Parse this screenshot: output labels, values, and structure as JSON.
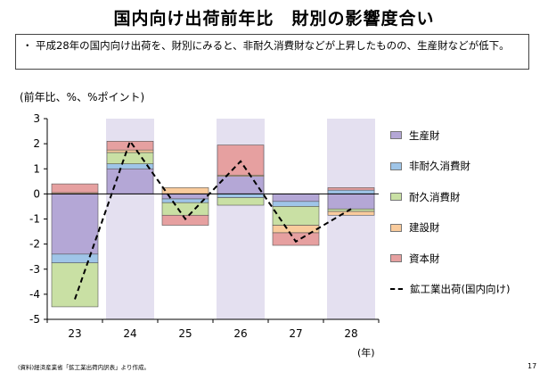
{
  "slide": {
    "title": "国内向け出荷前年比　財別の影響度合い",
    "bullet": "・",
    "summary": "平成28年の国内向け出荷を、財別にみると、非耐久消費財などが上昇したものの、生産財などが低下。",
    "unit_label": "(前年比、%、%ポイント)",
    "year_unit": "(年)",
    "source": "(資料)経済産業省「鉱工業出荷内訳表」より作成。",
    "page": "17"
  },
  "colors": {
    "production": "#b4a7d6",
    "nondurable": "#9fc5e8",
    "durable": "#c9e0a4",
    "construction": "#f9cb9c",
    "capital": "#e6a0a0",
    "shade": "#e4e0f0",
    "line": "#000000"
  },
  "chart_data": {
    "type": "bar",
    "stacked": true,
    "categories": [
      "23",
      "24",
      "25",
      "26",
      "27",
      "28"
    ],
    "ylim": [
      -5,
      3
    ],
    "yticks": [
      "3",
      "2",
      "1",
      "0",
      "-1",
      "-2",
      "-3",
      "-4",
      "-5"
    ],
    "shaded_categories": [
      "24",
      "26",
      "28"
    ],
    "series": [
      {
        "name": "生産財",
        "key": "production",
        "values": [
          -2.4,
          1.0,
          -0.2,
          0.7,
          -0.3,
          -0.6
        ]
      },
      {
        "name": "非耐久消費財",
        "key": "nondurable",
        "values": [
          -0.35,
          0.2,
          -0.15,
          -0.15,
          -0.2,
          0.15
        ]
      },
      {
        "name": "耐久消費財",
        "key": "durable",
        "values": [
          -1.75,
          0.45,
          -0.5,
          -0.3,
          -0.75,
          -0.1
        ]
      },
      {
        "name": "建設財",
        "key": "construction",
        "values": [
          0.05,
          0.1,
          0.25,
          0.05,
          -0.3,
          -0.15
        ]
      },
      {
        "name": "資本財",
        "key": "capital",
        "values": [
          0.35,
          0.35,
          -0.4,
          1.2,
          -0.5,
          0.1
        ]
      }
    ],
    "line": {
      "name": "鉱工業出荷(国内向け)",
      "values": [
        -4.2,
        2.1,
        -1.0,
        1.3,
        -1.9,
        -0.6
      ]
    }
  }
}
